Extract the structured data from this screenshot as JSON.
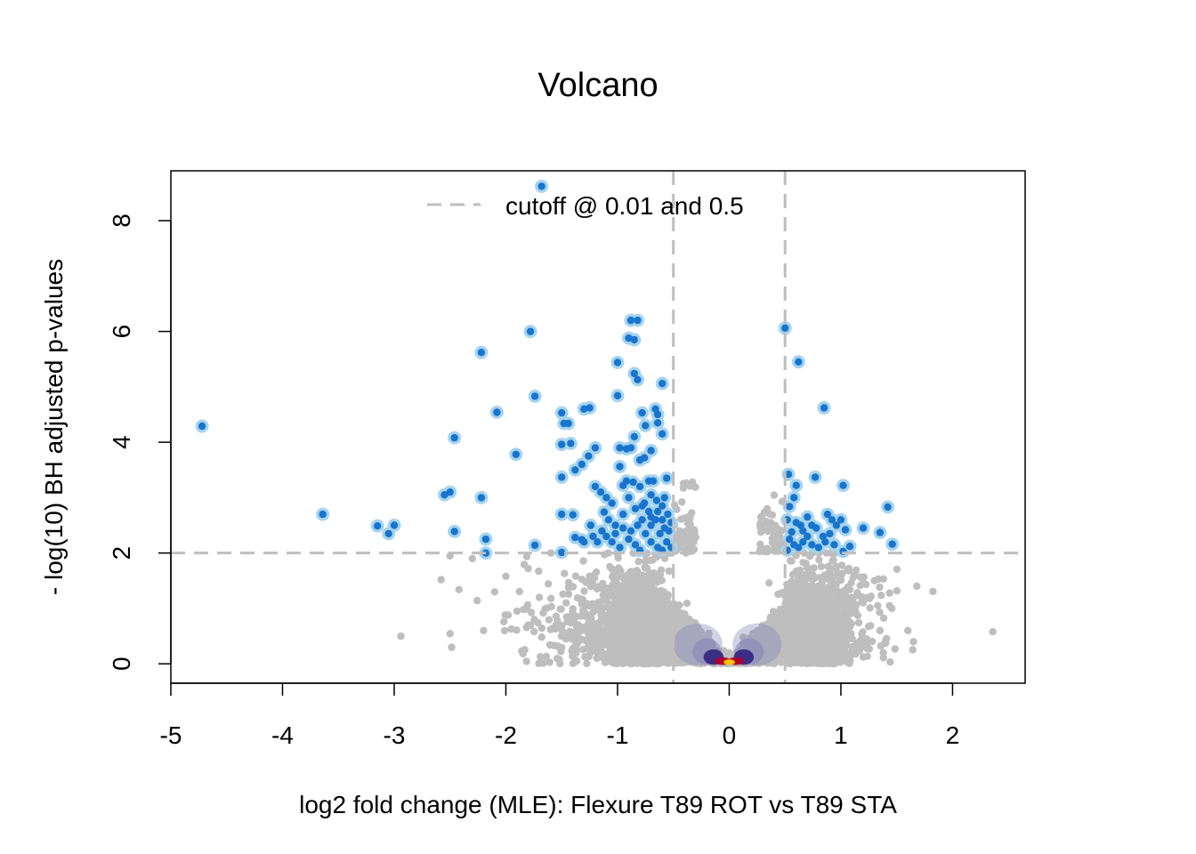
{
  "chart_data": {
    "type": "scatter",
    "title": "Volcano",
    "xlabel": "log2 fold change (MLE): Flexure T89 ROT vs T89 STA",
    "ylabel": "- log(10) BH adjusted p-values",
    "xlim": [
      -5,
      2.65
    ],
    "ylim": [
      -0.35,
      8.9
    ],
    "xticks": [
      -5,
      -4,
      -3,
      -2,
      -1,
      0,
      1,
      2
    ],
    "yticks": [
      0,
      2,
      4,
      6,
      8
    ],
    "legend": {
      "label": "cutoff @ 0.01 and 0.5",
      "placement": "top"
    },
    "cutoffs": {
      "x": [
        -0.5,
        0.5
      ],
      "y": 2
    },
    "colors": {
      "nonsignificant": "#bebebe",
      "significant": "#1874cd",
      "significant_halo": "#a6d4ee",
      "cutoff_line": "#bebebe",
      "density_low": "#7f7fb7",
      "density_mid": "#2b1a7a",
      "density_high": "#b0002a",
      "density_peak": "#ffc400"
    },
    "series": [
      {
        "role": "significant",
        "points": [
          [
            -4.72,
            4.29
          ],
          [
            -3.64,
            2.7
          ],
          [
            -3.15,
            2.49
          ],
          [
            -3.0,
            2.5
          ],
          [
            -3.05,
            2.35
          ],
          [
            -2.55,
            3.05
          ],
          [
            -2.5,
            3.1
          ],
          [
            -2.46,
            4.08
          ],
          [
            -2.46,
            2.39
          ],
          [
            -2.22,
            5.62
          ],
          [
            -2.22,
            3.0
          ],
          [
            -2.18,
            2.25
          ],
          [
            -2.18,
            2.0
          ],
          [
            -2.08,
            4.54
          ],
          [
            -1.91,
            3.78
          ],
          [
            -1.78,
            6.0
          ],
          [
            -1.74,
            4.83
          ],
          [
            -1.74,
            2.14
          ],
          [
            -1.68,
            8.62
          ],
          [
            -1.5,
            4.53
          ],
          [
            -1.48,
            4.34
          ],
          [
            -1.44,
            4.34
          ],
          [
            -1.5,
            3.96
          ],
          [
            -1.42,
            3.98
          ],
          [
            -1.5,
            3.37
          ],
          [
            -1.38,
            3.5
          ],
          [
            -1.32,
            3.6
          ],
          [
            -1.26,
            3.75
          ],
          [
            -1.2,
            3.9
          ],
          [
            -1.5,
            2.7
          ],
          [
            -1.4,
            2.69
          ],
          [
            -1.38,
            2.28
          ],
          [
            -1.32,
            2.24
          ],
          [
            -1.5,
            2.01
          ],
          [
            -1.3,
            4.6
          ],
          [
            -1.25,
            4.62
          ],
          [
            -1.2,
            3.2
          ],
          [
            -1.15,
            3.1
          ],
          [
            -1.1,
            3.0
          ],
          [
            -1.05,
            2.9
          ],
          [
            -1.12,
            2.74
          ],
          [
            -1.24,
            2.5
          ],
          [
            -1.18,
            2.2
          ],
          [
            -1.1,
            2.3
          ],
          [
            -1.02,
            2.5
          ],
          [
            -0.98,
            2.1
          ],
          [
            -0.95,
            2.7
          ],
          [
            -0.92,
            3.3
          ],
          [
            -0.88,
            3.9
          ],
          [
            -0.85,
            4.1
          ],
          [
            -0.9,
            5.88
          ],
          [
            -0.88,
            6.2
          ],
          [
            -0.85,
            5.85
          ],
          [
            -0.82,
            6.2
          ],
          [
            -1.0,
            5.44
          ],
          [
            -0.85,
            5.24
          ],
          [
            -0.82,
            5.13
          ],
          [
            -1.0,
            4.84
          ],
          [
            -0.6,
            5.06
          ],
          [
            -0.78,
            4.53
          ],
          [
            -0.75,
            4.3
          ],
          [
            -0.66,
            4.6
          ],
          [
            -0.64,
            4.5
          ],
          [
            -0.64,
            4.35
          ],
          [
            -0.6,
            4.15
          ],
          [
            -0.98,
            3.9
          ],
          [
            -0.92,
            3.88
          ],
          [
            -0.8,
            3.68
          ],
          [
            -0.76,
            3.72
          ],
          [
            -0.7,
            3.85
          ],
          [
            -0.98,
            3.56
          ],
          [
            -0.95,
            3.22
          ],
          [
            -0.86,
            3.28
          ],
          [
            -0.8,
            3.2
          ],
          [
            -0.72,
            3.3
          ],
          [
            -0.68,
            3.3
          ],
          [
            -0.56,
            3.35
          ],
          [
            -0.7,
            3.05
          ],
          [
            -0.65,
            2.95
          ],
          [
            -0.6,
            2.85
          ],
          [
            -0.55,
            2.7
          ],
          [
            -0.52,
            2.55
          ],
          [
            -0.58,
            2.45
          ],
          [
            -0.62,
            2.35
          ],
          [
            -0.66,
            2.6
          ],
          [
            -0.72,
            2.75
          ],
          [
            -0.78,
            2.6
          ],
          [
            -0.82,
            2.5
          ],
          [
            -0.88,
            2.4
          ],
          [
            -0.9,
            2.25
          ],
          [
            -1.05,
            2.2
          ],
          [
            -1.02,
            2.35
          ],
          [
            -0.95,
            2.45
          ],
          [
            -0.75,
            2.35
          ],
          [
            -0.7,
            2.2
          ],
          [
            -0.64,
            2.1
          ],
          [
            -0.56,
            2.2
          ],
          [
            -0.52,
            2.1
          ],
          [
            -0.6,
            2.05
          ],
          [
            -0.84,
            2.15
          ],
          [
            -0.8,
            2.05
          ],
          [
            -0.76,
            2.9
          ],
          [
            -0.7,
            2.5
          ],
          [
            -0.6,
            2.6
          ],
          [
            -0.54,
            2.4
          ],
          [
            -0.9,
            3.0
          ],
          [
            -0.84,
            2.8
          ],
          [
            -0.78,
            2.85
          ],
          [
            -0.7,
            2.65
          ],
          [
            -0.64,
            2.75
          ],
          [
            -0.58,
            3.0
          ],
          [
            -1.08,
            2.6
          ],
          [
            -1.14,
            2.4
          ],
          [
            -1.22,
            2.3
          ],
          [
            -1.3,
            2.2
          ],
          [
            0.5,
            6.06
          ],
          [
            0.62,
            5.45
          ],
          [
            0.85,
            4.62
          ],
          [
            0.53,
            3.42
          ],
          [
            0.6,
            3.22
          ],
          [
            0.77,
            3.37
          ],
          [
            1.02,
            3.22
          ],
          [
            0.58,
            3.0
          ],
          [
            0.54,
            2.84
          ],
          [
            1.42,
            2.83
          ],
          [
            0.52,
            2.6
          ],
          [
            0.6,
            2.55
          ],
          [
            0.66,
            2.4
          ],
          [
            0.7,
            2.65
          ],
          [
            0.74,
            2.5
          ],
          [
            0.78,
            2.45
          ],
          [
            0.84,
            2.3
          ],
          [
            0.88,
            2.7
          ],
          [
            0.92,
            2.6
          ],
          [
            0.96,
            2.5
          ],
          [
            1.0,
            2.6
          ],
          [
            1.04,
            2.42
          ],
          [
            0.54,
            2.25
          ],
          [
            0.58,
            2.15
          ],
          [
            0.62,
            2.1
          ],
          [
            0.66,
            2.2
          ],
          [
            0.7,
            2.3
          ],
          [
            0.74,
            2.15
          ],
          [
            0.8,
            2.1
          ],
          [
            0.86,
            2.2
          ],
          [
            0.9,
            2.35
          ],
          [
            0.94,
            2.15
          ],
          [
            1.02,
            2.03
          ],
          [
            1.08,
            2.12
          ],
          [
            1.2,
            2.45
          ],
          [
            1.35,
            2.37
          ],
          [
            1.46,
            2.16
          ],
          [
            0.52,
            2.05
          ],
          [
            0.56,
            2.38
          ],
          [
            0.64,
            2.5
          ]
        ]
      }
    ]
  }
}
